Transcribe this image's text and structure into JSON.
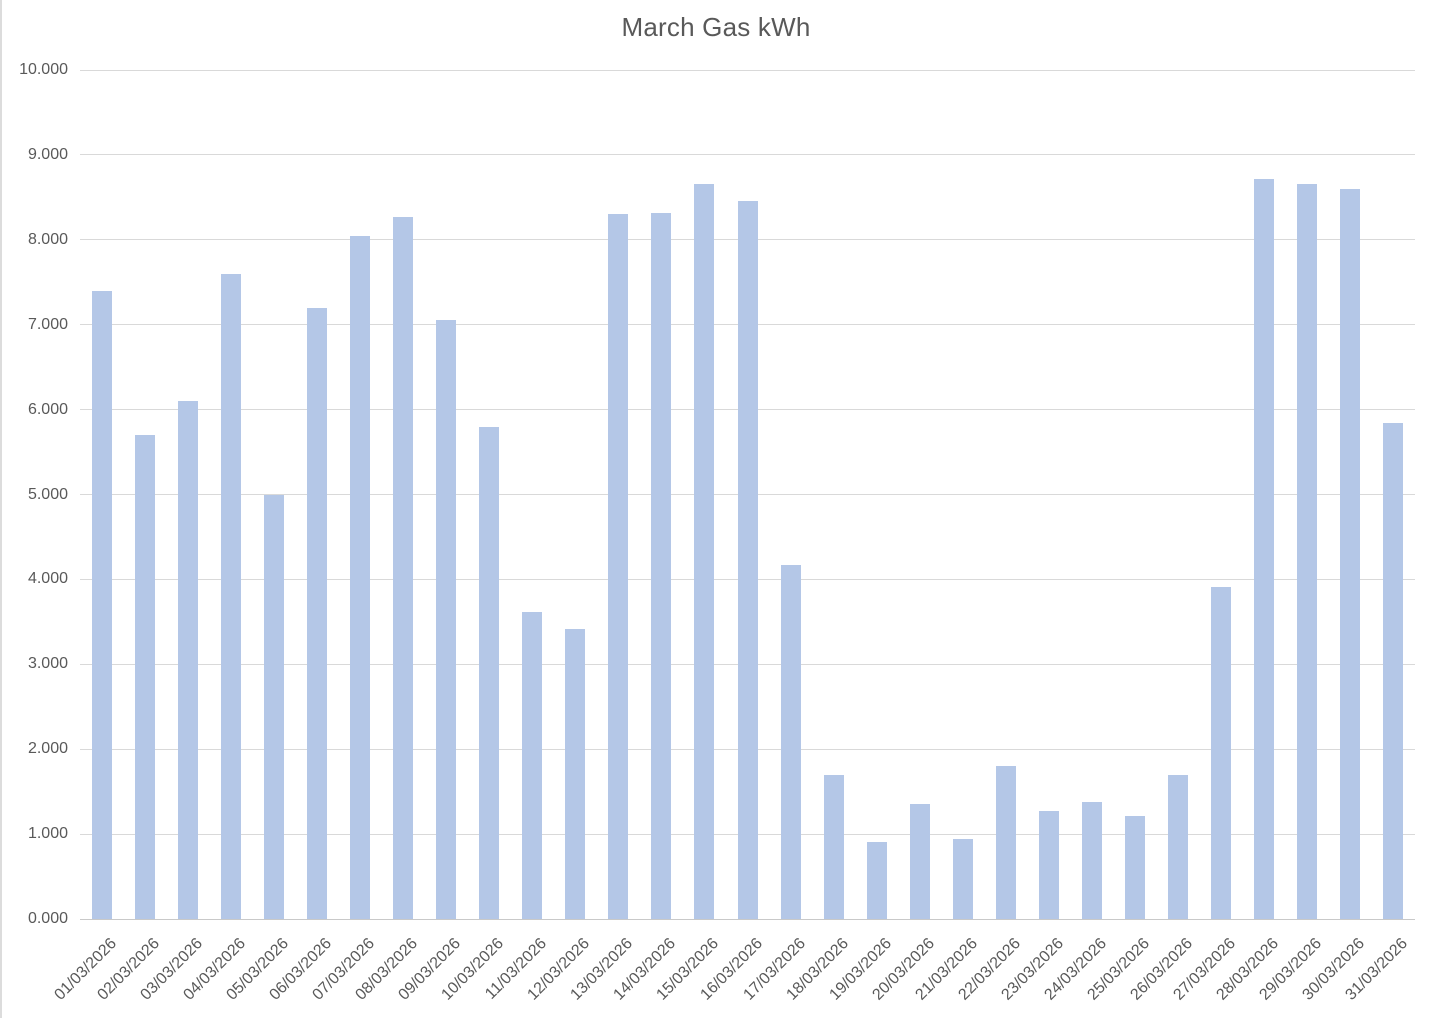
{
  "page": {
    "background": "#ffffff"
  },
  "chart_data": {
    "type": "bar",
    "title": "March Gas kWh",
    "categories": [
      "01/03/2026",
      "02/03/2026",
      "03/03/2026",
      "04/03/2026",
      "05/03/2026",
      "06/03/2026",
      "07/03/2026",
      "08/03/2026",
      "09/03/2026",
      "10/03/2026",
      "11/03/2026",
      "12/03/2026",
      "13/03/2026",
      "14/03/2026",
      "15/03/2026",
      "16/03/2026",
      "17/03/2026",
      "18/03/2026",
      "19/03/2026",
      "20/03/2026",
      "21/03/2026",
      "22/03/2026",
      "23/03/2026",
      "24/03/2026",
      "25/03/2026",
      "26/03/2026",
      "27/03/2026",
      "28/03/2026",
      "29/03/2026",
      "30/03/2026",
      "31/03/2026"
    ],
    "values": [
      7400,
      5700,
      6100,
      7600,
      5000,
      7200,
      8040,
      8270,
      7060,
      5800,
      3620,
      3410,
      8300,
      8320,
      8660,
      8460,
      4170,
      1700,
      910,
      1350,
      940,
      1800,
      1270,
      1380,
      1210,
      1700,
      3910,
      8720,
      8660,
      8600,
      5840
    ],
    "xlabel": "",
    "ylabel": "",
    "ylim": [
      0,
      10000
    ],
    "ytick_step": 1000,
    "ytick_labels": [
      "0.000",
      "1.000",
      "2.000",
      "3.000",
      "4.000",
      "5.000",
      "6.000",
      "7.000",
      "8.000",
      "9.000",
      "10.000"
    ],
    "grid": "horizontal",
    "legend": "none",
    "colors": {
      "bar": "#b4c7e7",
      "gridline": "#d9d9d9",
      "axis_line": "#c9c9c9",
      "tick_text": "#595959",
      "title_text": "#595959"
    }
  }
}
